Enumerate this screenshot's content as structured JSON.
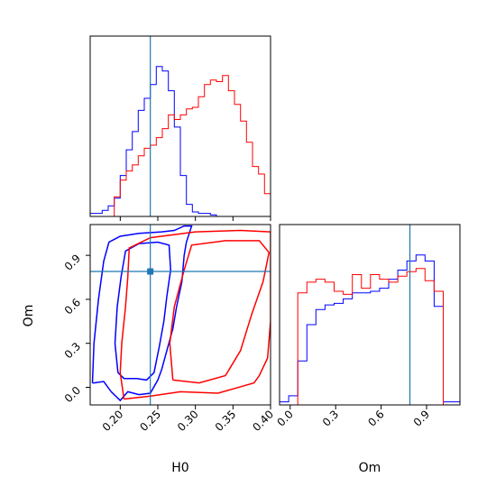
{
  "chart_data": {
    "type": "corner",
    "parameters": [
      "H0",
      "Om"
    ],
    "truth": {
      "H0": 0.24,
      "Om": 0.79
    },
    "colors": {
      "series_a": "#0000ff",
      "series_b": "#ff0000",
      "truth": "#1f77b4"
    },
    "panels": {
      "hist_H0": {
        "type": "histogram",
        "xlim": [
          0.16,
          0.4
        ],
        "bin_edges": [
          0.16,
          0.168,
          0.176,
          0.184,
          0.192,
          0.2,
          0.208,
          0.216,
          0.224,
          0.232,
          0.24,
          0.248,
          0.256,
          0.264,
          0.272,
          0.28,
          0.288,
          0.296,
          0.304,
          0.312,
          0.32,
          0.328,
          0.336,
          0.344,
          0.352,
          0.36,
          0.368,
          0.376,
          0.384,
          0.392,
          0.4
        ],
        "series": [
          {
            "color": "blue",
            "values": [
              0.02,
              0.02,
              0.04,
              0.07,
              0.12,
              0.27,
              0.44,
              0.56,
              0.7,
              0.78,
              0.87,
              0.99,
              0.96,
              0.83,
              0.59,
              0.27,
              0.08,
              0.03,
              0.02,
              0.02,
              0.01,
              0,
              0,
              0,
              0,
              0,
              0,
              0,
              0,
              0
            ]
          },
          {
            "color": "red",
            "values": [
              0,
              0,
              0,
              0,
              0.13,
              0.24,
              0.3,
              0.34,
              0.4,
              0.45,
              0.47,
              0.52,
              0.58,
              0.67,
              0.64,
              0.67,
              0.71,
              0.72,
              0.79,
              0.87,
              0.9,
              0.89,
              0.93,
              0.83,
              0.74,
              0.63,
              0.49,
              0.33,
              0.28,
              0.15
            ]
          }
        ]
      },
      "hist_Om": {
        "type": "histogram",
        "xlim": [
          -0.07,
          1.12
        ],
        "xticks": [
          "0.0",
          "0.3",
          "0.6",
          "0.9"
        ],
        "bin_edges": [
          -0.07,
          -0.01,
          0.05,
          0.11,
          0.17,
          0.23,
          0.29,
          0.35,
          0.41,
          0.47,
          0.53,
          0.59,
          0.65,
          0.71,
          0.77,
          0.83,
          0.89,
          0.95,
          1.01,
          1.07,
          1.12
        ],
        "series": [
          {
            "color": "blue",
            "values": [
              0.02,
              0.06,
              0.29,
              0.53,
              0.63,
              0.66,
              0.67,
              0.7,
              0.74,
              0.74,
              0.75,
              0.77,
              0.83,
              0.89,
              0.95,
              0.99,
              0.95,
              0.65,
              0.02,
              0.02
            ]
          },
          {
            "color": "red",
            "values": [
              0,
              0,
              0.74,
              0.81,
              0.83,
              0.81,
              0.75,
              0.73,
              0.86,
              0.77,
              0.86,
              0.83,
              0.81,
              0.85,
              0.88,
              0.9,
              0.82,
              0.75,
              0,
              0
            ]
          }
        ]
      },
      "contour_H0_Om": {
        "type": "contour",
        "xlim": [
          0.16,
          0.4
        ],
        "ylim": [
          -0.12,
          1.11
        ],
        "xticks": [
          "0.20",
          "0.25",
          "0.30",
          "0.35",
          "0.40"
        ],
        "yticks": [
          "0.0",
          "0.3",
          "0.6",
          "0.9"
        ],
        "xlabel": "H0",
        "ylabel": "Om",
        "series": [
          {
            "color": "blue",
            "levels": [
              [
                [
                  0.163,
                  0.03
                ],
                [
                  0.165,
                  0.3
                ],
                [
                  0.171,
                  0.6
                ],
                [
                  0.178,
                  0.86
                ],
                [
                  0.185,
                  0.99
                ],
                [
                  0.2,
                  1.03
                ],
                [
                  0.225,
                  1.05
                ],
                [
                  0.255,
                  1.06
                ],
                [
                  0.272,
                  1.07
                ],
                [
                  0.285,
                  1.1
                ],
                [
                  0.295,
                  1.1
                ],
                [
                  0.288,
                  0.99
                ],
                [
                  0.285,
                  0.9
                ],
                [
                  0.282,
                  0.72
                ],
                [
                  0.275,
                  0.55
                ],
                [
                  0.27,
                  0.4
                ],
                [
                  0.262,
                  0.25
                ],
                [
                  0.255,
                  0.12
                ],
                [
                  0.25,
                  0.05
                ],
                [
                  0.24,
                  -0.04
                ],
                [
                  0.225,
                  -0.05
                ],
                [
                  0.21,
                  -0.03
                ],
                [
                  0.2,
                  -0.09
                ],
                [
                  0.188,
                  -0.03
                ],
                [
                  0.178,
                  0.04
                ],
                [
                  0.165,
                  0.03
                ],
                [
                  0.163,
                  0.03
                ]
              ],
              [
                [
                  0.197,
                  0.1
                ],
                [
                  0.193,
                  0.3
                ],
                [
                  0.196,
                  0.55
                ],
                [
                  0.201,
                  0.75
                ],
                [
                  0.207,
                  0.93
                ],
                [
                  0.225,
                  0.98
                ],
                [
                  0.25,
                  0.99
                ],
                [
                  0.265,
                  0.97
                ],
                [
                  0.267,
                  0.8
                ],
                [
                  0.262,
                  0.62
                ],
                [
                  0.258,
                  0.45
                ],
                [
                  0.252,
                  0.28
                ],
                [
                  0.245,
                  0.1
                ],
                [
                  0.235,
                  0.05
                ],
                [
                  0.222,
                  0.06
                ],
                [
                  0.205,
                  0.06
                ],
                [
                  0.197,
                  0.1
                ]
              ]
            ]
          },
          {
            "color": "red",
            "levels": [
              [
                [
                  0.205,
                  -0.08
                ],
                [
                  0.2,
                  0.1
                ],
                [
                  0.202,
                  0.3
                ],
                [
                  0.207,
                  0.55
                ],
                [
                  0.21,
                  0.75
                ],
                [
                  0.212,
                  0.95
                ],
                [
                  0.24,
                  1.02
                ],
                [
                  0.3,
                  1.06
                ],
                [
                  0.36,
                  1.07
                ],
                [
                  0.4,
                  1.06
                ],
                [
                  0.4,
                  0.45
                ],
                [
                  0.396,
                  0.2
                ],
                [
                  0.385,
                  0.08
                ],
                [
                  0.378,
                  0.03
                ],
                [
                  0.33,
                  -0.04
                ],
                [
                  0.28,
                  -0.03
                ],
                [
                  0.24,
                  -0.06
                ],
                [
                  0.205,
                  -0.08
                ]
              ],
              [
                [
                  0.27,
                  0.05
                ],
                [
                  0.266,
                  0.3
                ],
                [
                  0.272,
                  0.55
                ],
                [
                  0.285,
                  0.8
                ],
                [
                  0.295,
                  0.97
                ],
                [
                  0.34,
                  1.0
                ],
                [
                  0.385,
                  1.0
                ],
                [
                  0.398,
                  0.92
                ],
                [
                  0.39,
                  0.72
                ],
                [
                  0.375,
                  0.5
                ],
                [
                  0.36,
                  0.25
                ],
                [
                  0.34,
                  0.08
                ],
                [
                  0.305,
                  0.03
                ],
                [
                  0.27,
                  0.05
                ]
              ]
            ]
          }
        ]
      }
    }
  }
}
